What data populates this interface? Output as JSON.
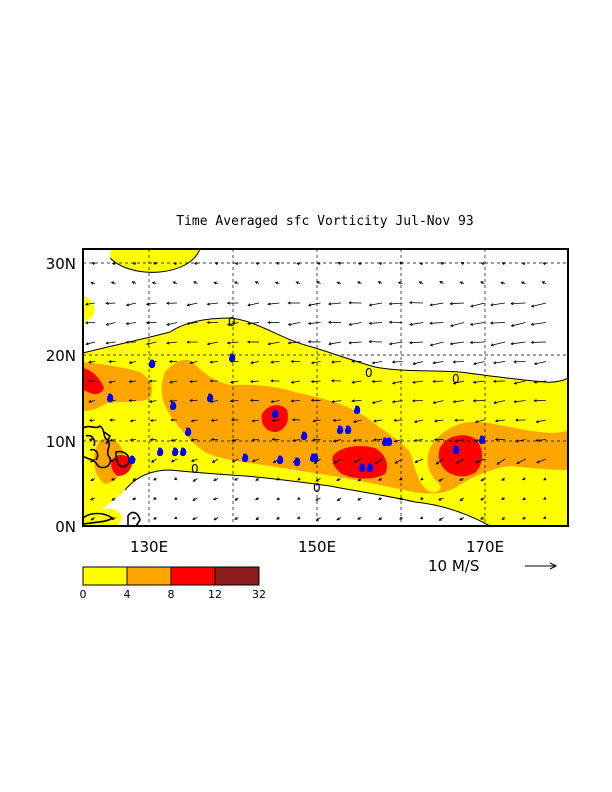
{
  "title": "Time Averaged sfc Vorticity  Jul-Nov  93",
  "map": {
    "lon_range": [
      120,
      180
    ],
    "lat_range": [
      0,
      32
    ],
    "lat_labels": [
      "30N",
      "20N",
      "10N",
      "0N"
    ],
    "lat_values": [
      30,
      20,
      10,
      0
    ],
    "lon_labels": [
      "130E",
      "150E",
      "170E"
    ],
    "lon_values": [
      130,
      150,
      170
    ],
    "gridlines": "dashed every 10 degrees",
    "contour_zero_label": "0"
  },
  "wind_reference": {
    "label": "10 M/S"
  },
  "colorbar": {
    "ticks": [
      "0",
      "4",
      "8",
      "12",
      "32"
    ],
    "colors": [
      "#ffff00",
      "#ffa500",
      "#ff0000",
      "#8b1a1a"
    ]
  },
  "colors": {
    "level_0_4": "#ffff00",
    "level_4_8": "#ffa500",
    "level_8_12": "#ff0000",
    "level_12_32": "#8b1a1a",
    "storm_symbol": "#0000ff",
    "land_contour": "#000000"
  },
  "storm_symbol": "tropical-cyclone-icon"
}
